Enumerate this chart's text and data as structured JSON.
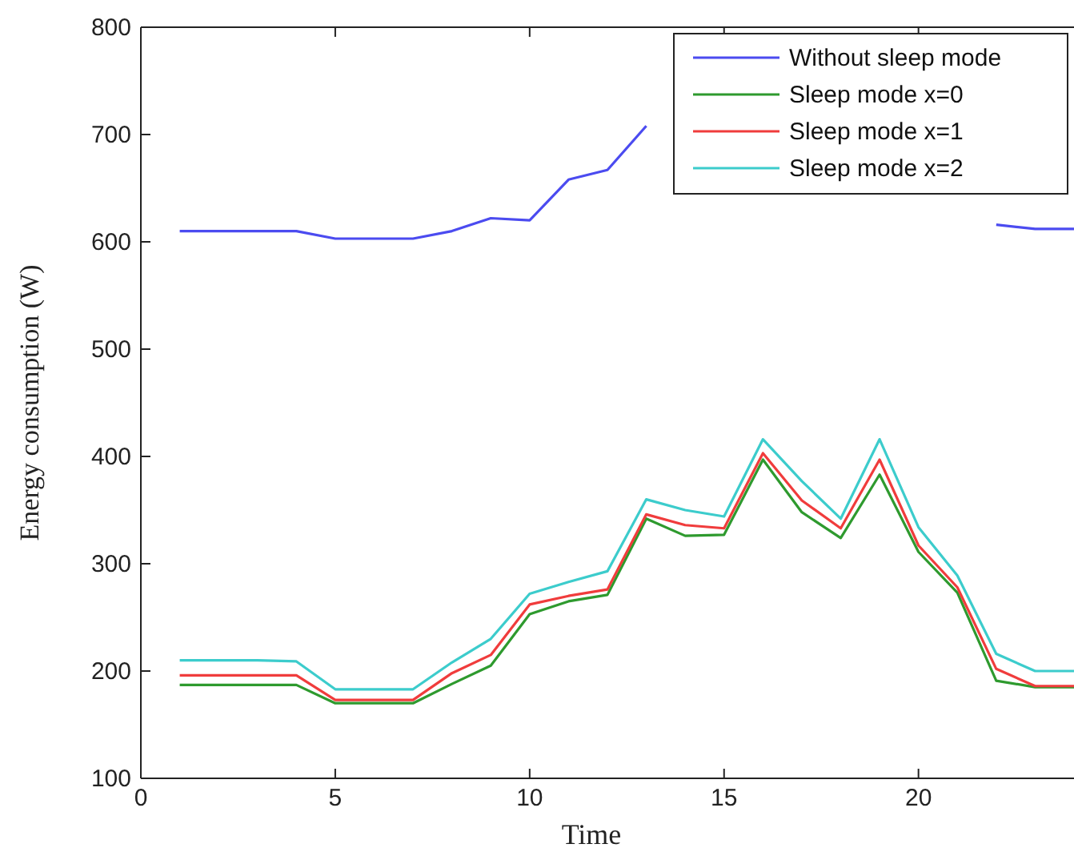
{
  "chart_data": {
    "type": "line",
    "xlabel": "Time",
    "ylabel": "Energy consumption (W)",
    "x": [
      1,
      2,
      3,
      4,
      5,
      6,
      7,
      8,
      9,
      10,
      11,
      12,
      13,
      14,
      15,
      16,
      17,
      18,
      19,
      20,
      21,
      22,
      23,
      24
    ],
    "xlim": [
      0,
      24
    ],
    "xticks": [
      0,
      5,
      10,
      15,
      20
    ],
    "ylim": [
      100,
      800
    ],
    "yticks": [
      100,
      200,
      300,
      400,
      500,
      600,
      700,
      800
    ],
    "legend": "top right",
    "grid": false,
    "marker": "none",
    "line_style": "solid",
    "series": [
      {
        "name": "Without sleep mode",
        "color": "#4b4bf0",
        "values": [
          610,
          610,
          610,
          610,
          603,
          603,
          603,
          610,
          622,
          620,
          658,
          667,
          708,
          null,
          null,
          null,
          null,
          null,
          null,
          null,
          null,
          616,
          612,
          612
        ]
      },
      {
        "name": "Sleep mode x=0",
        "color": "#2e9a2e",
        "values": [
          187,
          187,
          187,
          187,
          170,
          170,
          170,
          188,
          205,
          253,
          265,
          271,
          342,
          326,
          327,
          397,
          348,
          324,
          383,
          311,
          273,
          191,
          185,
          185
        ]
      },
      {
        "name": "Sleep mode x=1",
        "color": "#f03c3c",
        "values": [
          196,
          196,
          196,
          196,
          173,
          173,
          173,
          198,
          215,
          262,
          270,
          276,
          346,
          336,
          333,
          403,
          359,
          333,
          397,
          317,
          278,
          202,
          186,
          186
        ]
      },
      {
        "name": "Sleep mode x=2",
        "color": "#3ccccc",
        "values": [
          210,
          210,
          210,
          209,
          183,
          183,
          183,
          208,
          230,
          272,
          283,
          293,
          360,
          350,
          344,
          416,
          377,
          342,
          416,
          334,
          289,
          216,
          200,
          200
        ]
      }
    ]
  }
}
